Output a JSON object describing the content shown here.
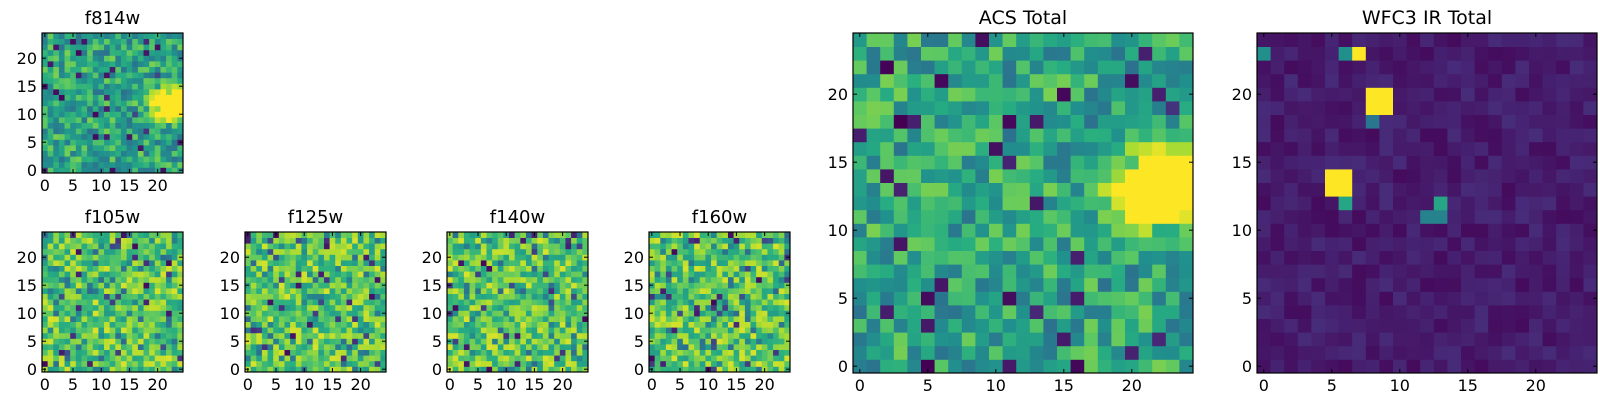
{
  "chart_data": [
    {
      "type": "heatmap",
      "title": "f814w",
      "grid_size": 25,
      "xticks": [
        0,
        5,
        10,
        15,
        20
      ],
      "yticks": [
        0,
        5,
        10,
        15,
        20
      ],
      "colormap": "viridis",
      "pattern": "noise_with_bright_blob",
      "hotspots": [
        {
          "x": 22,
          "y": 12,
          "r": 3.5,
          "level": 1.0
        }
      ]
    },
    {
      "type": "heatmap",
      "title": "f105w",
      "grid_size": 25,
      "xticks": [
        0,
        5,
        10,
        15,
        20
      ],
      "yticks": [
        0,
        5,
        10,
        15,
        20
      ],
      "colormap": "viridis",
      "pattern": "noise_high",
      "hotspots": []
    },
    {
      "type": "heatmap",
      "title": "f125w",
      "grid_size": 25,
      "xticks": [
        0,
        5,
        10,
        15,
        20
      ],
      "yticks": [
        0,
        5,
        10,
        15,
        20
      ],
      "colormap": "viridis",
      "pattern": "noise_high",
      "hotspots": []
    },
    {
      "type": "heatmap",
      "title": "f140w",
      "grid_size": 25,
      "xticks": [
        0,
        5,
        10,
        15,
        20
      ],
      "yticks": [
        0,
        5,
        10,
        15,
        20
      ],
      "colormap": "viridis",
      "pattern": "noise_high",
      "hotspots": []
    },
    {
      "type": "heatmap",
      "title": "f160w",
      "grid_size": 25,
      "xticks": [
        0,
        5,
        10,
        15,
        20
      ],
      "yticks": [
        0,
        5,
        10,
        15,
        20
      ],
      "colormap": "viridis",
      "pattern": "noise_high",
      "hotspots": []
    },
    {
      "type": "heatmap",
      "title": "ACS Total",
      "grid_size": 25,
      "xticks": [
        0,
        5,
        10,
        15,
        20
      ],
      "yticks": [
        0,
        5,
        10,
        15,
        20
      ],
      "colormap": "viridis",
      "pattern": "noise_with_bright_blob",
      "hotspots": [
        {
          "x": 22,
          "y": 13,
          "r": 3.5,
          "level": 1.0
        }
      ]
    },
    {
      "type": "heatmap",
      "title": "WFC3 IR Total",
      "grid_size": 25,
      "xticks": [
        0,
        5,
        10,
        15,
        20
      ],
      "yticks": [
        0,
        5,
        10,
        15,
        20
      ],
      "colormap": "viridis",
      "pattern": "dark_with_spots",
      "hotspots": [
        {
          "x": 5.5,
          "y": 13.5,
          "w": 2,
          "h": 2,
          "level": 1.0
        },
        {
          "x": 8.5,
          "y": 19.5,
          "w": 2,
          "h": 2,
          "level": 1.0
        },
        {
          "x": 12.5,
          "y": 11.5,
          "w": 1,
          "h": 1,
          "level": 0.6
        },
        {
          "x": 7,
          "y": 23,
          "w": 1,
          "h": 1,
          "level": 1.0
        },
        {
          "x": 6,
          "y": 23,
          "w": 1,
          "h": 1,
          "level": 0.5
        },
        {
          "x": 0,
          "y": 23,
          "w": 1,
          "h": 1,
          "level": 0.5
        },
        {
          "x": 8,
          "y": 18,
          "w": 1,
          "h": 1,
          "level": 0.4
        },
        {
          "x": 12,
          "y": 11,
          "w": 2,
          "h": 1,
          "level": 0.45
        },
        {
          "x": 6,
          "y": 12,
          "w": 1,
          "h": 1,
          "level": 0.6
        }
      ]
    }
  ]
}
